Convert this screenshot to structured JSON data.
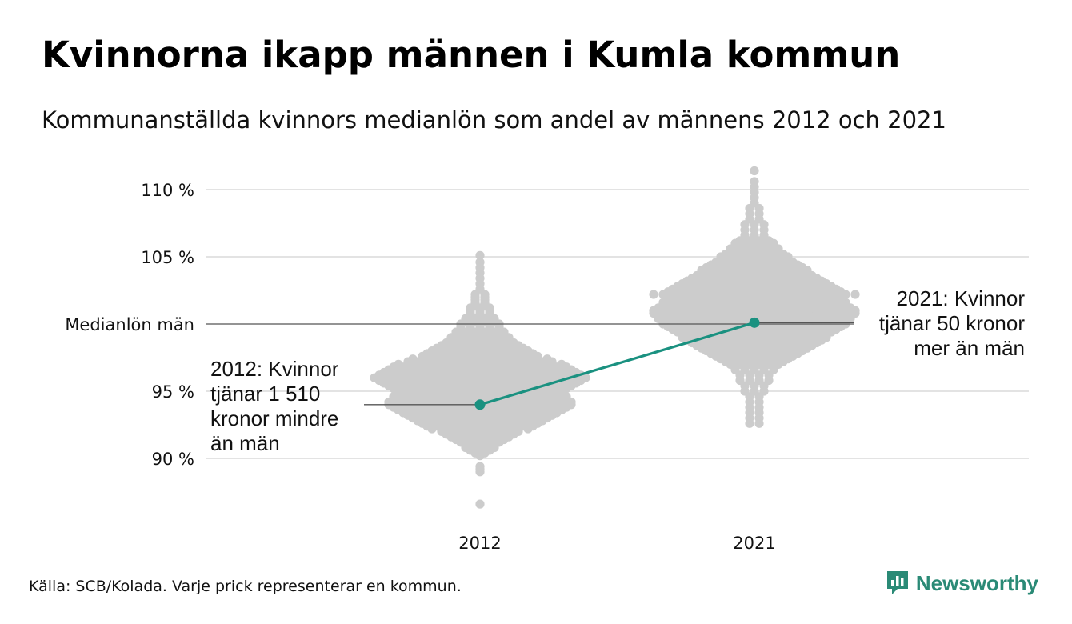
{
  "title": "Kvinnorna ikapp männen i Kumla kommun",
  "subtitle": "Kommunanställda kvinnors medianlön som andel av männens 2012 och 2021",
  "footer": "Källa: SCB/Kolada. Varje prick representerar en kommun.",
  "brand": {
    "name": "Newsworthy",
    "icon": "newsworthy-logo-icon"
  },
  "colors": {
    "dots": "#cccccc",
    "highlight": "#1a9180",
    "grid": "#e3e3e3",
    "reference": "#555555",
    "brand": "#2a8a76"
  },
  "chart_data": {
    "type": "scatter",
    "title": "Kvinnorna ikapp männen i Kumla kommun",
    "subtitle": "Kommunanställda kvinnors medianlön som andel av männens 2012 och 2021",
    "categories": [
      "2012",
      "2021"
    ],
    "ylim": [
      86,
      111.5
    ],
    "yticks": [
      {
        "value": 90,
        "label": "90 %"
      },
      {
        "value": 95,
        "label": "95 %"
      },
      {
        "value": 100,
        "label": "Medianlön män"
      },
      {
        "value": 105,
        "label": "105 %"
      },
      {
        "value": 110,
        "label": "110 %"
      }
    ],
    "grid": true,
    "reference_line": {
      "value": 100,
      "label": "Medianlön män"
    },
    "beeswarm": [
      {
        "category": "2012",
        "values": [
          86.6,
          89,
          89.2,
          89.4,
          90.2,
          90.4,
          90.6,
          90.8,
          91,
          91.2,
          91.4,
          91.6,
          91.8,
          92,
          92.2,
          92.4,
          92.6,
          92.8,
          93,
          93.2,
          93.4,
          93.6,
          93.8,
          94,
          94.2,
          94.4,
          94.6,
          94.8,
          95,
          95.2,
          95.4,
          95.6,
          95.8,
          96,
          96.2,
          96.4,
          96.6,
          96.8,
          97,
          97.2,
          97.4,
          97.6,
          97.8,
          98,
          98.2,
          98.4,
          98.6,
          98.8,
          99,
          99.2,
          99.4,
          99.6,
          99.8,
          100,
          100.2,
          100.4,
          100.6,
          100.8,
          101,
          101.2,
          101.4,
          101.6,
          101.8,
          102,
          102.2,
          102.6,
          103,
          103.4,
          103.8,
          104.2,
          104.6,
          105.1
        ],
        "counts": [
          1,
          1,
          1,
          1,
          1,
          2,
          3,
          4,
          4,
          5,
          6,
          7,
          8,
          9,
          11,
          12,
          13,
          14,
          15,
          16,
          17,
          18,
          19,
          20,
          20,
          19,
          19,
          18,
          18,
          19,
          20,
          21,
          22,
          23,
          22,
          21,
          20,
          19,
          18,
          16,
          15,
          13,
          12,
          11,
          10,
          9,
          8,
          7,
          7,
          6,
          6,
          5,
          5,
          5,
          4,
          4,
          3,
          3,
          3,
          3,
          2,
          2,
          2,
          2,
          2,
          1,
          1,
          1,
          1,
          1,
          1,
          1
        ]
      },
      {
        "category": "2021",
        "values": [
          92.6,
          93,
          93.4,
          93.8,
          94.2,
          94.6,
          95,
          95.4,
          95.8,
          96.2,
          96.6,
          97,
          97.2,
          97.4,
          97.6,
          97.8,
          98,
          98.2,
          98.4,
          98.6,
          98.8,
          99,
          99.2,
          99.4,
          99.6,
          99.8,
          100,
          100.2,
          100.4,
          100.6,
          100.8,
          101,
          101.2,
          101.4,
          101.6,
          101.8,
          102,
          102.2,
          102.4,
          102.6,
          102.8,
          103,
          103.2,
          103.4,
          103.6,
          103.8,
          104,
          104.2,
          104.4,
          104.6,
          104.8,
          105,
          105.2,
          105.4,
          105.6,
          105.8,
          106,
          106.2,
          106.6,
          107,
          107.4,
          107.8,
          108.2,
          108.6,
          109,
          109.4,
          109.8,
          110.2,
          110.6,
          111.4
        ],
        "counts": [
          2,
          2,
          2,
          2,
          2,
          2,
          3,
          3,
          4,
          4,
          5,
          6,
          7,
          8,
          9,
          10,
          11,
          12,
          13,
          14,
          15,
          16,
          16,
          17,
          18,
          19,
          20,
          20,
          21,
          21,
          22,
          22,
          21,
          20,
          20,
          19,
          18,
          22,
          19,
          18,
          17,
          16,
          15,
          14,
          13,
          12,
          12,
          11,
          10,
          9,
          8,
          8,
          7,
          6,
          6,
          5,
          5,
          4,
          3,
          3,
          3,
          2,
          2,
          2,
          1,
          1,
          1,
          1,
          1,
          1
        ]
      }
    ],
    "series": [
      {
        "name": "Kumla kommun",
        "x": [
          "2012",
          "2021"
        ],
        "values": [
          94,
          100.1
        ]
      }
    ],
    "annotations": [
      {
        "category": "2012",
        "value": 94,
        "lines": [
          "2012: Kvinnor",
          "tjänar 1 510",
          "kronor mindre",
          "än män"
        ]
      },
      {
        "category": "2021",
        "value": 100.1,
        "lines": [
          "2021: Kvinnor",
          "tjänar 50 kronor",
          "mer än män"
        ]
      }
    ]
  }
}
